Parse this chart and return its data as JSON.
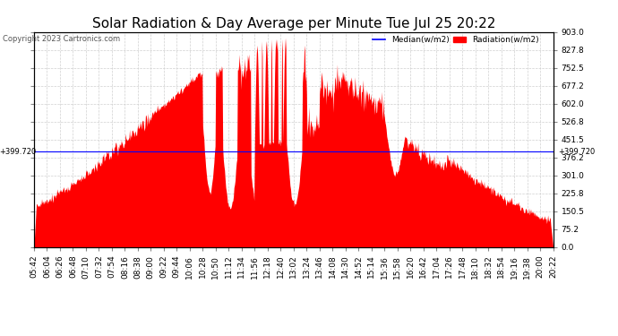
{
  "title": "Solar Radiation & Day Average per Minute Tue Jul 25 20:22",
  "copyright": "Copyright 2023 Cartronics.com",
  "legend_median": "Median(w/m2)",
  "legend_radiation": "Radiation(w/m2)",
  "median_color": "#0000ff",
  "radiation_color": "#ff0000",
  "background_color": "#ffffff",
  "plot_bg_color": "#ffffff",
  "grid_color": "#cccccc",
  "median_line_value": 399.72,
  "ymin": 0.0,
  "ymax": 903.0,
  "yticks": [
    0.0,
    75.2,
    150.5,
    225.8,
    301.0,
    376.2,
    451.5,
    526.8,
    602.0,
    677.2,
    752.5,
    827.8,
    903.0
  ],
  "title_fontsize": 11,
  "tick_fontsize": 6.5,
  "label_fontsize": 7
}
